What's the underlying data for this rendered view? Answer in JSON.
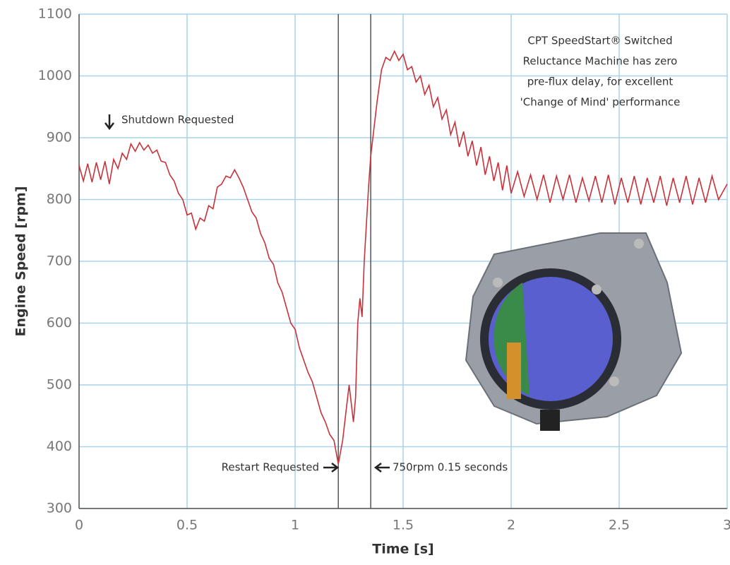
{
  "chart_data": {
    "type": "line",
    "xlabel": "Time [s]",
    "ylabel": "Engine Speed [rpm]",
    "xlim": [
      0,
      3
    ],
    "ylim": [
      300,
      1100
    ],
    "xticks": [
      0,
      0.5,
      1,
      1.5,
      2,
      2.5,
      3
    ],
    "yticks": [
      300,
      400,
      500,
      600,
      700,
      800,
      900,
      1000,
      1100
    ],
    "grid": true,
    "markers_x": [
      1.2,
      1.35
    ],
    "annotations": [
      "Shutdown Requested",
      "Restart Requested",
      "750rpm 0.15 seconds"
    ],
    "note_lines": [
      "CPT SpeedStart® Switched",
      "Reluctance Machine has zero",
      "pre-flux delay, for excellent",
      "'Change of Mind' performance"
    ],
    "series": [
      {
        "color": "#c8323a",
        "x": [
          0,
          0.02,
          0.04,
          0.06,
          0.08,
          0.1,
          0.12,
          0.14,
          0.16,
          0.18,
          0.2,
          0.22,
          0.24,
          0.26,
          0.28,
          0.3,
          0.32,
          0.34,
          0.36,
          0.38,
          0.4,
          0.42,
          0.44,
          0.46,
          0.48,
          0.5,
          0.52,
          0.54,
          0.56,
          0.58,
          0.6,
          0.62,
          0.64,
          0.66,
          0.68,
          0.7,
          0.72,
          0.74,
          0.76,
          0.78,
          0.8,
          0.82,
          0.84,
          0.86,
          0.88,
          0.9,
          0.92,
          0.94,
          0.96,
          0.98,
          1.0,
          1.02,
          1.04,
          1.06,
          1.08,
          1.1,
          1.12,
          1.14,
          1.16,
          1.18,
          1.2,
          1.22,
          1.24,
          1.25,
          1.26,
          1.27,
          1.28,
          1.29,
          1.3,
          1.31,
          1.32,
          1.33,
          1.34,
          1.35,
          1.36,
          1.38,
          1.4,
          1.42,
          1.44,
          1.46,
          1.48,
          1.5,
          1.52,
          1.54,
          1.56,
          1.58,
          1.6,
          1.62,
          1.64,
          1.66,
          1.68,
          1.7,
          1.72,
          1.74,
          1.76,
          1.78,
          1.8,
          1.82,
          1.84,
          1.86,
          1.88,
          1.9,
          1.92,
          1.94,
          1.96,
          1.98,
          2.0,
          2.03,
          2.06,
          2.09,
          2.12,
          2.15,
          2.18,
          2.21,
          2.24,
          2.27,
          2.3,
          2.33,
          2.36,
          2.39,
          2.42,
          2.45,
          2.48,
          2.51,
          2.54,
          2.57,
          2.6,
          2.63,
          2.66,
          2.69,
          2.72,
          2.75,
          2.78,
          2.81,
          2.84,
          2.87,
          2.9,
          2.93,
          2.96,
          3.0
        ],
        "values": [
          855,
          830,
          858,
          828,
          860,
          832,
          862,
          825,
          865,
          850,
          875,
          865,
          890,
          878,
          892,
          880,
          888,
          875,
          880,
          862,
          860,
          840,
          830,
          810,
          800,
          775,
          778,
          752,
          770,
          765,
          790,
          785,
          820,
          825,
          838,
          835,
          848,
          835,
          820,
          800,
          780,
          770,
          745,
          730,
          705,
          695,
          665,
          650,
          625,
          600,
          590,
          560,
          540,
          520,
          505,
          480,
          455,
          440,
          420,
          410,
          372,
          410,
          470,
          500,
          470,
          440,
          480,
          600,
          640,
          610,
          700,
          760,
          820,
          870,
          900,
          960,
          1010,
          1030,
          1025,
          1040,
          1025,
          1035,
          1010,
          1015,
          990,
          1000,
          970,
          985,
          950,
          965,
          930,
          945,
          905,
          925,
          885,
          910,
          870,
          895,
          855,
          885,
          840,
          870,
          830,
          860,
          815,
          855,
          810,
          845,
          805,
          840,
          800,
          840,
          795,
          838,
          800,
          840,
          795,
          835,
          798,
          838,
          795,
          840,
          792,
          835,
          795,
          838,
          792,
          835,
          795,
          838,
          790,
          835,
          795,
          838,
          792,
          835,
          795,
          838,
          800,
          825
        ]
      }
    ]
  }
}
